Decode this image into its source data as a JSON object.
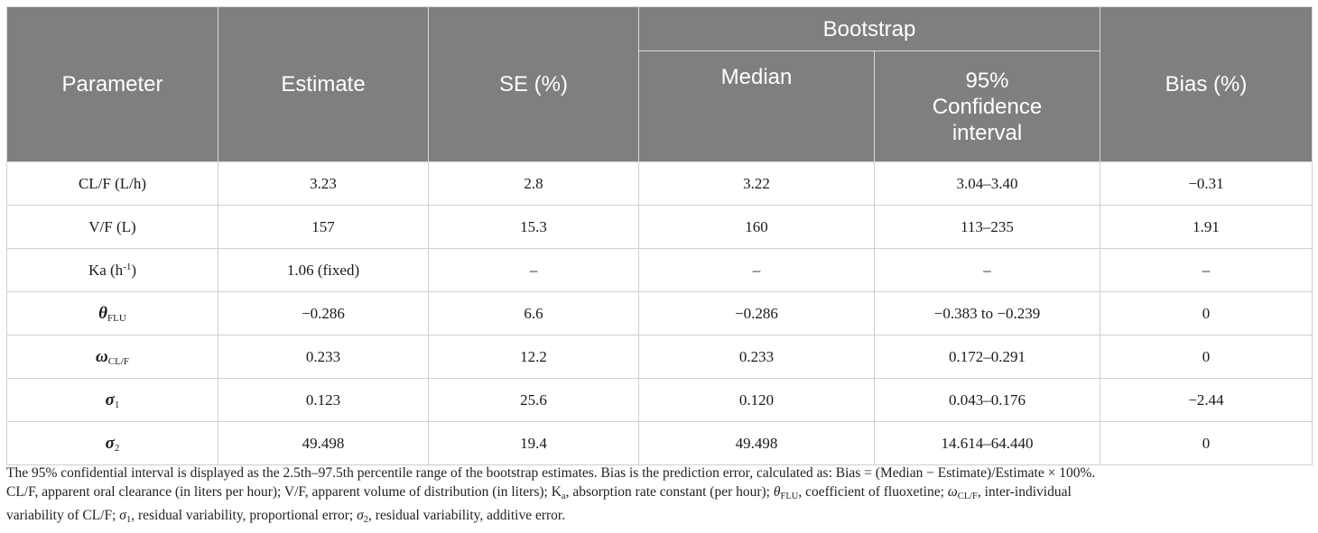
{
  "table": {
    "headers": {
      "parameter": "Parameter",
      "estimate": "Estimate",
      "se": "SE (%)",
      "bootstrap": "Bootstrap",
      "median": "Median",
      "ci": "95% Confidence interval",
      "bias": "Bias (%)"
    },
    "rows": [
      {
        "param": "CL/F (L/h)",
        "estimate": "3.23",
        "se": "2.8",
        "median": "3.22",
        "ci": "3.04–3.40",
        "bias": "−0.31"
      },
      {
        "param": "V/F (L)",
        "estimate": "157",
        "se": "15.3",
        "median": "160",
        "ci": "113–235",
        "bias": "1.91"
      },
      {
        "param_main": "Ka (h",
        "param_sup": "-1",
        "param_end": ")",
        "estimate": "1.06 (fixed)",
        "se": "–",
        "median": "–",
        "ci": "–",
        "bias": "–"
      },
      {
        "param_sym": "θ",
        "param_sub": "FLU",
        "estimate": "−0.286",
        "se": "6.6",
        "median": "−0.286",
        "ci": "−0.383 to −0.239",
        "bias": "0"
      },
      {
        "param_sym": "ω",
        "param_sub": "CL/F",
        "estimate": "0.233",
        "se": "12.2",
        "median": "0.233",
        "ci": "0.172–0.291",
        "bias": "0"
      },
      {
        "param_sym": "σ",
        "param_sub": "1",
        "estimate": "0.123",
        "se": "25.6",
        "median": "0.120",
        "ci": "0.043–0.176",
        "bias": "−2.44"
      },
      {
        "param_sym": "σ",
        "param_sub": "2",
        "estimate": "49.498",
        "se": "19.4",
        "median": "49.498",
        "ci": "14.614–64.440",
        "bias": "0"
      }
    ]
  },
  "footnote": {
    "line1": "The 95% confidential interval is displayed as the 2.5th–97.5th percentile range of the bootstrap estimates. Bias is the prediction error, calculated as: Bias = (Median − Estimate)/Estimate × 100%.",
    "l2_a": "CL/F, apparent oral clearance (in liters per hour); V/F, apparent volume of distribution (in liters); K",
    "l2_a_sub": "a",
    "l2_b": ", absorption rate constant (per hour); ",
    "l2_theta": "θ",
    "l2_theta_sub": "FLU",
    "l2_c": ", coefficient of fluoxetine; ",
    "l2_omega": "ω",
    "l2_omega_sub": "CL/F",
    "l2_d": ", inter-individual",
    "l3_a": "variability of CL/F; ",
    "l3_s1": "σ",
    "l3_s1_sub": "1",
    "l3_b": ", residual variability, proportional error; ",
    "l3_s2": "σ",
    "l3_s2_sub": "2",
    "l3_c": ", residual variability, additive error."
  }
}
